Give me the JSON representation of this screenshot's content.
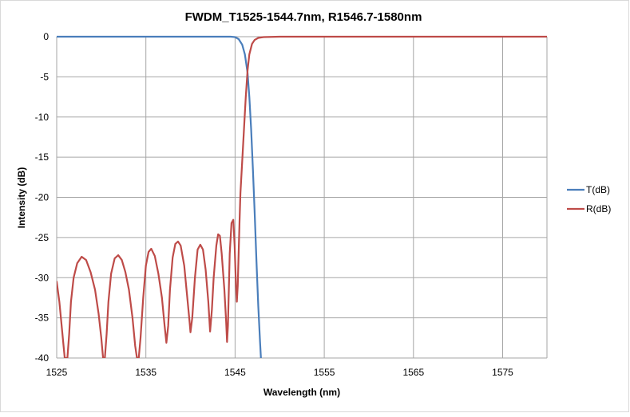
{
  "chart_data": {
    "type": "line",
    "title": "FWDM_T1525-1544.7nm, R1546.7-1580nm",
    "xlabel": "Wavelength (nm)",
    "ylabel": "Intensity (dB)",
    "xlim": [
      1525,
      1580
    ],
    "ylim": [
      -40,
      0
    ],
    "x_ticks": [
      1525,
      1535,
      1545,
      1555,
      1565,
      1575
    ],
    "y_ticks": [
      0,
      -5,
      -10,
      -15,
      -20,
      -25,
      -30,
      -35,
      -40
    ],
    "grid": true,
    "legend_position": "right",
    "series": [
      {
        "name": "T(dB)",
        "color": "#4a7ebb",
        "points": [
          [
            1525,
            0
          ],
          [
            1540,
            0
          ],
          [
            1544.5,
            0
          ],
          [
            1545.0,
            -0.05
          ],
          [
            1545.4,
            -0.3
          ],
          [
            1545.8,
            -1.0
          ],
          [
            1546.1,
            -2.2
          ],
          [
            1546.4,
            -4.5
          ],
          [
            1546.6,
            -7.5
          ],
          [
            1546.8,
            -11.5
          ],
          [
            1547.0,
            -16.5
          ],
          [
            1547.2,
            -22.0
          ],
          [
            1547.4,
            -28.0
          ],
          [
            1547.6,
            -33.5
          ],
          [
            1547.8,
            -38.0
          ],
          [
            1547.9,
            -40
          ]
        ]
      },
      {
        "name": "R(dB)",
        "color": "#be4b48",
        "points": [
          [
            1525.0,
            -30.5
          ],
          [
            1525.3,
            -33.0
          ],
          [
            1525.6,
            -36.5
          ],
          [
            1525.9,
            -40
          ],
          [
            1526.2,
            -40
          ],
          [
            1526.4,
            -37.0
          ],
          [
            1526.6,
            -33.0
          ],
          [
            1526.9,
            -30.0
          ],
          [
            1527.3,
            -28.2
          ],
          [
            1527.8,
            -27.4
          ],
          [
            1528.3,
            -27.8
          ],
          [
            1528.8,
            -29.3
          ],
          [
            1529.3,
            -31.5
          ],
          [
            1529.7,
            -34.5
          ],
          [
            1530.0,
            -37.5
          ],
          [
            1530.2,
            -40
          ],
          [
            1530.4,
            -40
          ],
          [
            1530.6,
            -37.0
          ],
          [
            1530.8,
            -33.0
          ],
          [
            1531.1,
            -29.5
          ],
          [
            1531.5,
            -27.6
          ],
          [
            1531.9,
            -27.2
          ],
          [
            1532.3,
            -27.8
          ],
          [
            1532.7,
            -29.3
          ],
          [
            1533.1,
            -31.5
          ],
          [
            1533.5,
            -35.0
          ],
          [
            1533.8,
            -38.5
          ],
          [
            1534.0,
            -40
          ],
          [
            1534.2,
            -40
          ],
          [
            1534.4,
            -37.5
          ],
          [
            1534.7,
            -32.5
          ],
          [
            1535.0,
            -28.5
          ],
          [
            1535.3,
            -26.8
          ],
          [
            1535.6,
            -26.4
          ],
          [
            1536.0,
            -27.3
          ],
          [
            1536.4,
            -29.5
          ],
          [
            1536.8,
            -32.5
          ],
          [
            1537.1,
            -36.0
          ],
          [
            1537.3,
            -38.1
          ],
          [
            1537.5,
            -36.0
          ],
          [
            1537.7,
            -31.5
          ],
          [
            1538.0,
            -27.5
          ],
          [
            1538.3,
            -25.8
          ],
          [
            1538.6,
            -25.5
          ],
          [
            1538.9,
            -26.0
          ],
          [
            1539.3,
            -28.5
          ],
          [
            1539.6,
            -32.0
          ],
          [
            1539.9,
            -35.5
          ],
          [
            1540.0,
            -36.8
          ],
          [
            1540.2,
            -35.0
          ],
          [
            1540.5,
            -30.0
          ],
          [
            1540.8,
            -26.5
          ],
          [
            1541.1,
            -25.9
          ],
          [
            1541.4,
            -26.5
          ],
          [
            1541.7,
            -29.0
          ],
          [
            1542.0,
            -33.0
          ],
          [
            1542.2,
            -36.7
          ],
          [
            1542.4,
            -34.0
          ],
          [
            1542.6,
            -30.0
          ],
          [
            1542.9,
            -26.0
          ],
          [
            1543.1,
            -24.6
          ],
          [
            1543.3,
            -24.8
          ],
          [
            1543.5,
            -27.0
          ],
          [
            1543.8,
            -31.5
          ],
          [
            1544.0,
            -35.5
          ],
          [
            1544.1,
            -38.0
          ],
          [
            1544.2,
            -36.0
          ],
          [
            1544.3,
            -31.5
          ],
          [
            1544.4,
            -27.0
          ],
          [
            1544.6,
            -23.2
          ],
          [
            1544.8,
            -22.8
          ],
          [
            1544.95,
            -26.0
          ],
          [
            1545.1,
            -31.0
          ],
          [
            1545.2,
            -33.0
          ],
          [
            1545.3,
            -31.0
          ],
          [
            1545.4,
            -27.0
          ],
          [
            1545.5,
            -23.0
          ],
          [
            1545.6,
            -19.5
          ],
          [
            1545.8,
            -15.5
          ],
          [
            1546.0,
            -11.5
          ],
          [
            1546.2,
            -7.5
          ],
          [
            1546.4,
            -4.2
          ],
          [
            1546.6,
            -2.2
          ],
          [
            1546.9,
            -0.9
          ],
          [
            1547.2,
            -0.4
          ],
          [
            1547.6,
            -0.15
          ],
          [
            1548.2,
            -0.05
          ],
          [
            1550.0,
            0
          ],
          [
            1580.0,
            0
          ]
        ]
      }
    ]
  }
}
